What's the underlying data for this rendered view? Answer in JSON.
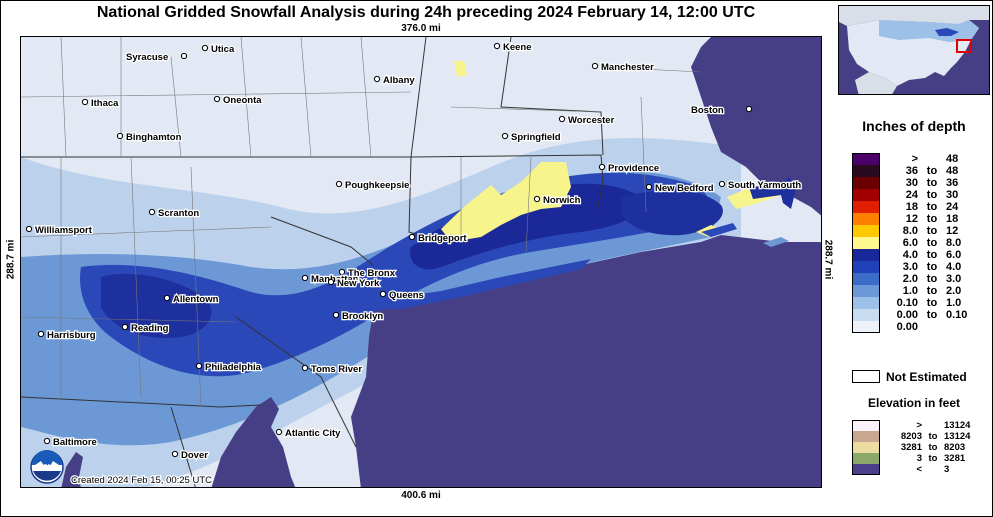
{
  "title": "National Gridded Snowfall Analysis during 24h preceding 2024 February 14, 12:00 UTC",
  "dimensions": {
    "top": "376.0 mi",
    "bottom": "400.6 mi",
    "left": "288.7 mi",
    "right": "288.7 mi"
  },
  "created": "Created 2024 Feb 15, 00:25 UTC",
  "logo": {
    "icon": "noaa-logo-icon",
    "text": "NOAA"
  },
  "cities": [
    {
      "name": "Syracuse"
    },
    {
      "name": "Utica"
    },
    {
      "name": "Keene"
    },
    {
      "name": "Manchester"
    },
    {
      "name": "Albany"
    },
    {
      "name": "Ithaca"
    },
    {
      "name": "Oneonta"
    },
    {
      "name": "Worcester"
    },
    {
      "name": "Boston"
    },
    {
      "name": "Binghamton"
    },
    {
      "name": "Springfield"
    },
    {
      "name": "Providence"
    },
    {
      "name": "Poughkeepsie"
    },
    {
      "name": "New Bedford"
    },
    {
      "name": "South Yarmouth"
    },
    {
      "name": "Norwich"
    },
    {
      "name": "Scranton"
    },
    {
      "name": "Williamsport"
    },
    {
      "name": "Bridgeport"
    },
    {
      "name": "The Bronx"
    },
    {
      "name": "Manhattan"
    },
    {
      "name": "New York"
    },
    {
      "name": "Queens"
    },
    {
      "name": "Allentown"
    },
    {
      "name": "Brooklyn"
    },
    {
      "name": "Reading"
    },
    {
      "name": "Harrisburg"
    },
    {
      "name": "Philadelphia"
    },
    {
      "name": "Toms River"
    },
    {
      "name": "Atlantic City"
    },
    {
      "name": "Baltimore"
    },
    {
      "name": "Dover"
    }
  ],
  "legend": {
    "title": "Inches of depth",
    "rows": [
      {
        "lo": ">",
        "to": "",
        "hi": "48",
        "color": "#4b0068"
      },
      {
        "lo": "36",
        "to": "to",
        "hi": "48",
        "color": "#2a0a1e"
      },
      {
        "lo": "30",
        "to": "to",
        "hi": "36",
        "color": "#6a0000"
      },
      {
        "lo": "24",
        "to": "to",
        "hi": "30",
        "color": "#a00000"
      },
      {
        "lo": "18",
        "to": "to",
        "hi": "24",
        "color": "#e01e00"
      },
      {
        "lo": "12",
        "to": "to",
        "hi": "18",
        "color": "#ff8000"
      },
      {
        "lo": "8.0",
        "to": "to",
        "hi": "12",
        "color": "#ffc800"
      },
      {
        "lo": "6.0",
        "to": "to",
        "hi": "8.0",
        "color": "#fff88c"
      },
      {
        "lo": "4.0",
        "to": "to",
        "hi": "6.0",
        "color": "#182898"
      },
      {
        "lo": "3.0",
        "to": "to",
        "hi": "4.0",
        "color": "#2040b8"
      },
      {
        "lo": "2.0",
        "to": "to",
        "hi": "3.0",
        "color": "#3a6cc8"
      },
      {
        "lo": "1.0",
        "to": "to",
        "hi": "2.0",
        "color": "#6a98d8"
      },
      {
        "lo": "0.10",
        "to": "to",
        "hi": "1.0",
        "color": "#9cc0e8"
      },
      {
        "lo": "0.00",
        "to": "to",
        "hi": "0.10",
        "color": "#c8dcf2"
      },
      {
        "lo": "0.00",
        "to": "",
        "hi": "",
        "color": "#eef2fa"
      }
    ],
    "not_estimated": "Not Estimated",
    "elevation_title": "Elevation in feet",
    "elevation_rows": [
      {
        "lo": ">",
        "to": "",
        "hi": "13124",
        "color": "#fbf2fa"
      },
      {
        "lo": "8203",
        "to": "to",
        "hi": "13124",
        "color": "#c8a890"
      },
      {
        "lo": "3281",
        "to": "to",
        "hi": "8203",
        "color": "#ecdca0"
      },
      {
        "lo": "3",
        "to": "to",
        "hi": "3281",
        "color": "#8aa868"
      },
      {
        "lo": "<",
        "to": "",
        "hi": "3",
        "color": "#4a3f88"
      }
    ]
  },
  "colors": {
    "ocean": "#463f86",
    "land_light": "#e4ebf5",
    "snow_heavy": "#1e32a0",
    "snow_yellow": "#f8f48c"
  }
}
